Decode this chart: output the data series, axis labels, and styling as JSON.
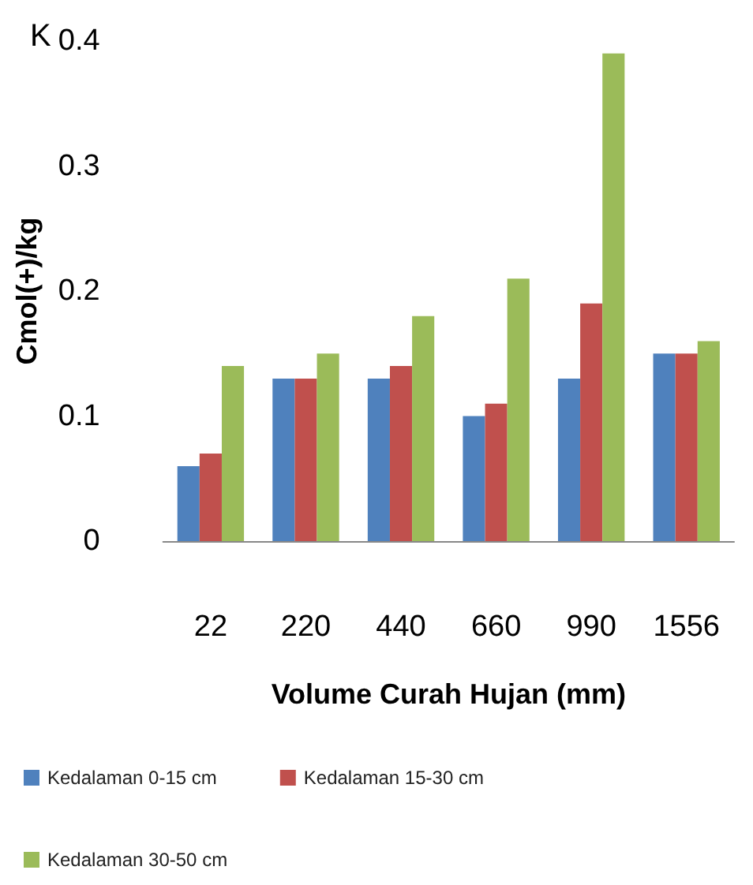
{
  "chart_data": {
    "type": "bar",
    "title": "K",
    "xlabel": "Volume Curah Hujan (mm)",
    "ylabel": "Cmol(+)/kg",
    "categories": [
      "22",
      "220",
      "440",
      "660",
      "990",
      "1556"
    ],
    "series": [
      {
        "name": "Kedalaman 0-15 cm",
        "color": "#4f81bd",
        "values": [
          0.06,
          0.13,
          0.13,
          0.1,
          0.13,
          0.15
        ]
      },
      {
        "name": "Kedalaman 15-30 cm",
        "color": "#c0504d",
        "values": [
          0.07,
          0.13,
          0.14,
          0.11,
          0.19,
          0.15
        ]
      },
      {
        "name": "Kedalaman 30-50 cm",
        "color": "#9bbb59",
        "values": [
          0.14,
          0.15,
          0.18,
          0.21,
          0.39,
          0.16
        ]
      }
    ],
    "ylim": [
      0,
      0.4
    ],
    "yticks": [
      0,
      0.1,
      0.2,
      0.3,
      0.4
    ],
    "grid": false,
    "legend": "bottom"
  }
}
